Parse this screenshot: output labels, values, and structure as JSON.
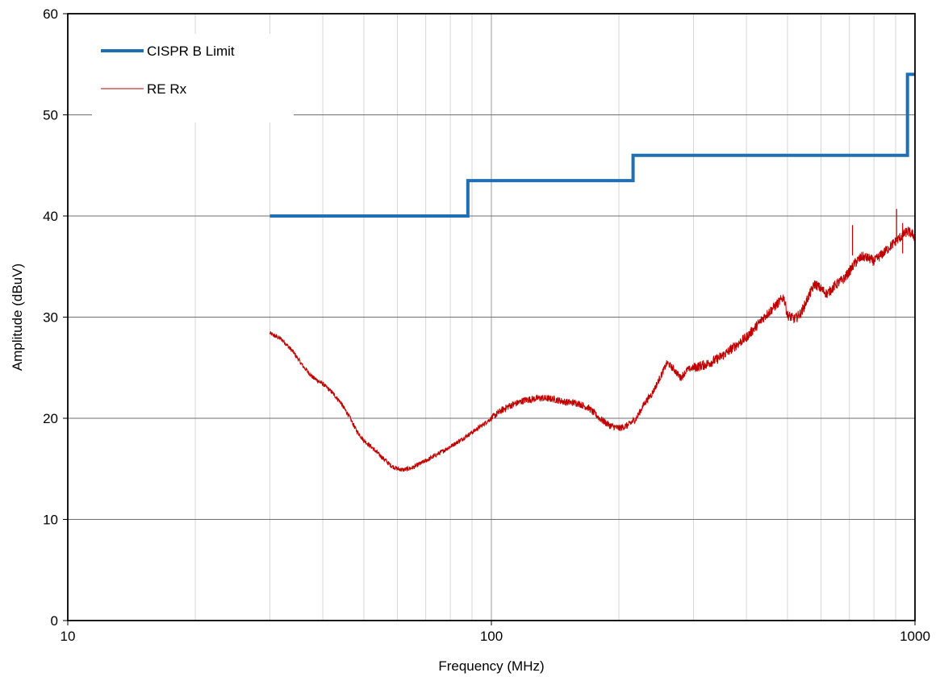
{
  "chart_data": {
    "type": "line",
    "xlabel": "Frequency (MHz)",
    "ylabel": "Amplitude (dBuV)",
    "xscale": "log",
    "xlim": [
      10,
      1000
    ],
    "ylim": [
      0,
      60
    ],
    "x_major_ticks": [
      10,
      100,
      1000
    ],
    "x_tick_labels": [
      "10",
      "100",
      "1000"
    ],
    "y_ticks": [
      0,
      10,
      20,
      30,
      40,
      50,
      60
    ],
    "y_tick_labels": [
      "0",
      "10",
      "20",
      "30",
      "40",
      "50",
      "60"
    ],
    "grid": true,
    "legend_position": "top-left",
    "series": [
      {
        "name": "CISPR B Limit",
        "color": "#1f6fb4",
        "style": "thick-step",
        "points": [
          [
            30,
            40
          ],
          [
            88,
            40
          ],
          [
            88,
            43.5
          ],
          [
            216,
            43.5
          ],
          [
            216,
            46
          ],
          [
            960,
            46
          ],
          [
            960,
            54
          ],
          [
            1000,
            54
          ]
        ]
      },
      {
        "name": "RE Rx",
        "color": "#c00000",
        "style": "thin-noisy",
        "points": [
          [
            30,
            28.4
          ],
          [
            32,
            27.8
          ],
          [
            34,
            26.6
          ],
          [
            36,
            25.1
          ],
          [
            38,
            24.0
          ],
          [
            40,
            23.4
          ],
          [
            42,
            22.6
          ],
          [
            44,
            21.6
          ],
          [
            46,
            20.3
          ],
          [
            48,
            18.8
          ],
          [
            50,
            17.8
          ],
          [
            52,
            17.2
          ],
          [
            55,
            16.2
          ],
          [
            58,
            15.3
          ],
          [
            60,
            15.0
          ],
          [
            62,
            14.9
          ],
          [
            65,
            15.1
          ],
          [
            70,
            15.8
          ],
          [
            75,
            16.5
          ],
          [
            80,
            17.2
          ],
          [
            85,
            17.9
          ],
          [
            90,
            18.6
          ],
          [
            95,
            19.3
          ],
          [
            100,
            20.0
          ],
          [
            105,
            20.7
          ],
          [
            110,
            21.2
          ],
          [
            115,
            21.5
          ],
          [
            120,
            21.8
          ],
          [
            130,
            22.0
          ],
          [
            140,
            21.9
          ],
          [
            150,
            21.6
          ],
          [
            160,
            21.5
          ],
          [
            170,
            21.0
          ],
          [
            180,
            20.0
          ],
          [
            190,
            19.3
          ],
          [
            200,
            19.0
          ],
          [
            210,
            19.3
          ],
          [
            220,
            20.0
          ],
          [
            230,
            21.5
          ],
          [
            240,
            22.5
          ],
          [
            250,
            24.0
          ],
          [
            260,
            25.5
          ],
          [
            270,
            24.8
          ],
          [
            280,
            24.0
          ],
          [
            290,
            24.8
          ],
          [
            300,
            25.0
          ],
          [
            320,
            25.3
          ],
          [
            340,
            25.8
          ],
          [
            360,
            26.5
          ],
          [
            380,
            27.3
          ],
          [
            400,
            28.0
          ],
          [
            420,
            29.0
          ],
          [
            440,
            30.0
          ],
          [
            460,
            30.8
          ],
          [
            480,
            31.6
          ],
          [
            490,
            32.0
          ],
          [
            500,
            30.2
          ],
          [
            520,
            29.8
          ],
          [
            540,
            30.5
          ],
          [
            560,
            32.0
          ],
          [
            580,
            33.3
          ],
          [
            600,
            32.8
          ],
          [
            620,
            32.3
          ],
          [
            650,
            33.2
          ],
          [
            680,
            33.8
          ],
          [
            700,
            34.5
          ],
          [
            720,
            35.3
          ],
          [
            750,
            36.0
          ],
          [
            780,
            35.8
          ],
          [
            800,
            35.5
          ],
          [
            850,
            36.5
          ],
          [
            900,
            37.5
          ],
          [
            930,
            38.0
          ],
          [
            960,
            38.5
          ],
          [
            1000,
            38.0
          ]
        ],
        "spikes": [
          [
            712,
            39.1
          ],
          [
            905,
            40.7
          ],
          [
            935,
            39.3
          ]
        ]
      }
    ]
  }
}
